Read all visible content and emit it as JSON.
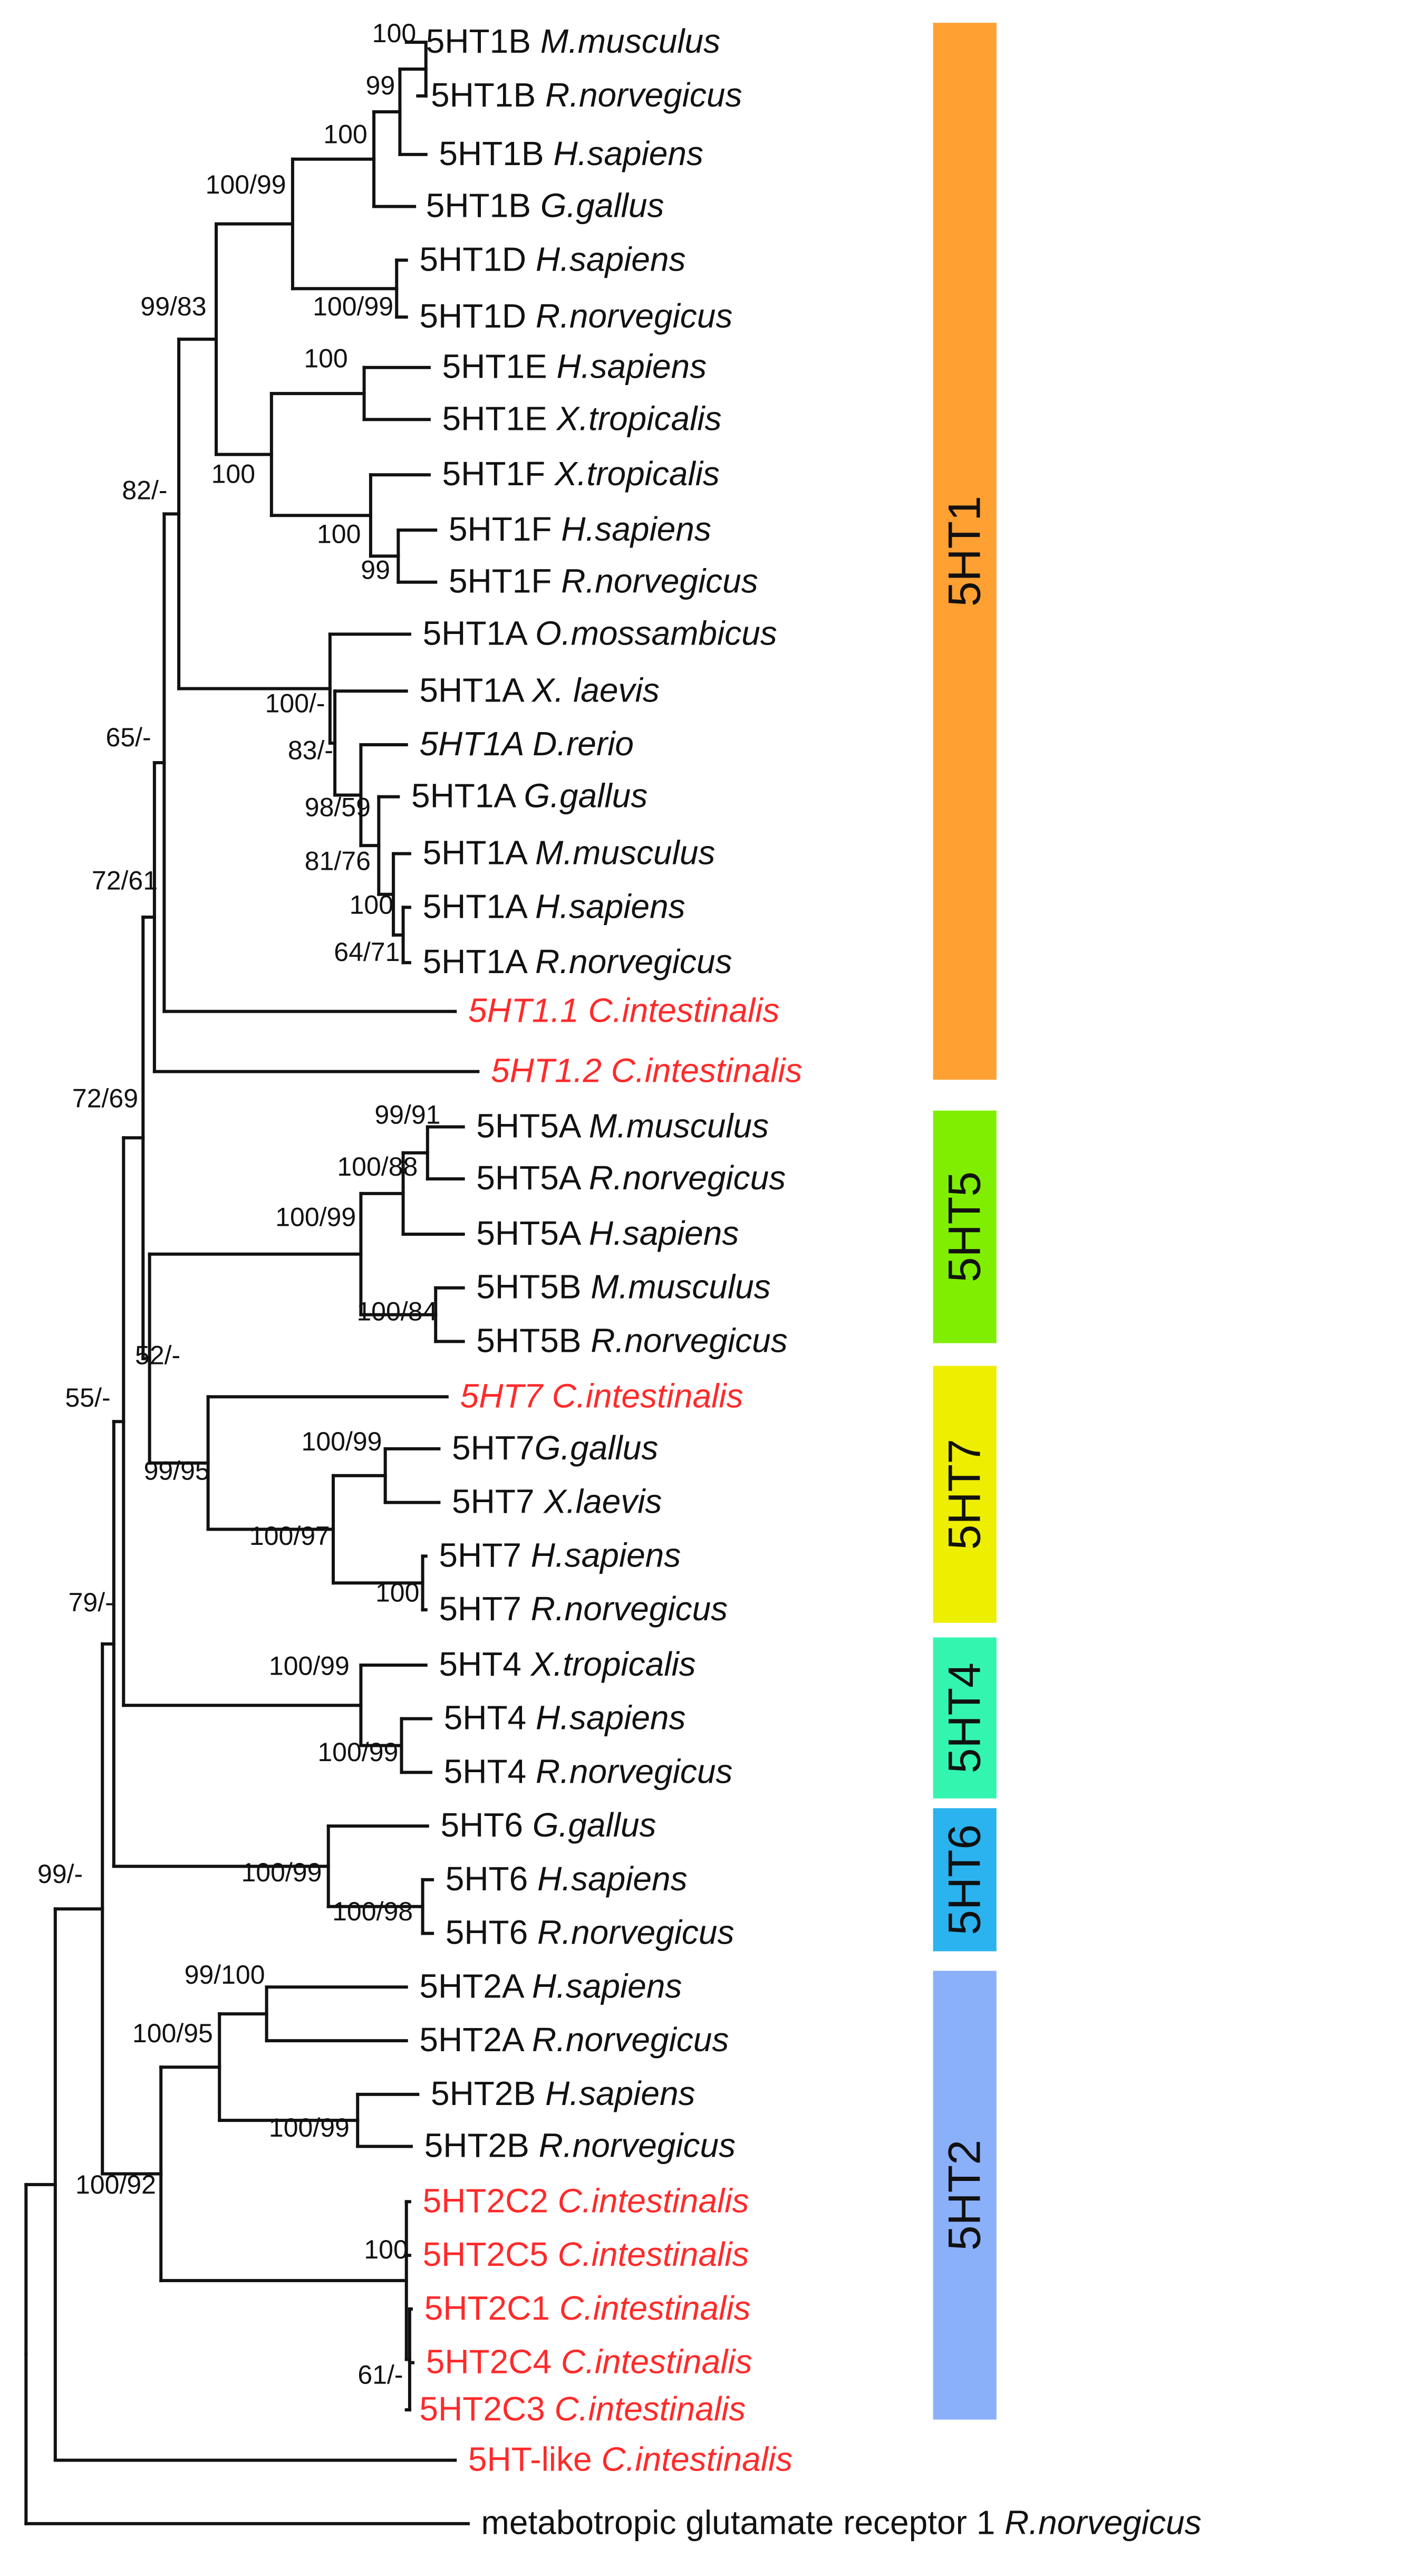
{
  "colors": {
    "ink": "#111111",
    "highlight": "#ff2a2a"
  },
  "taxa": {
    "t_1b_mm": {
      "gene": "5HT1B ",
      "species": "M.musculus"
    },
    "t_1b_rn": {
      "gene": "5HT1B ",
      "species": "R.norvegicus"
    },
    "t_1b_hs": {
      "gene": "5HT1B ",
      "species": "H.sapiens"
    },
    "t_1b_gg": {
      "gene": "5HT1B ",
      "species": "G.gallus"
    },
    "t_1d_hs": {
      "gene": "5HT1D ",
      "species": "H.sapiens"
    },
    "t_1d_rn": {
      "gene": "5HT1D ",
      "species": "R.norvegicus"
    },
    "t_1e_hs": {
      "gene": "5HT1E ",
      "species": "H.sapiens"
    },
    "t_1e_xt": {
      "gene": "5HT1E ",
      "species": "X.tropicalis"
    },
    "t_1f_xt": {
      "gene": "5HT1F ",
      "species": "X.tropicalis"
    },
    "t_1f_hs": {
      "gene": "5HT1F ",
      "species": "H.sapiens"
    },
    "t_1f_rn": {
      "gene": "5HT1F ",
      "species": "R.norvegicus"
    },
    "t_1a_om": {
      "gene": "5HT1A ",
      "species": "O.mossambicus"
    },
    "t_1a_xl": {
      "gene": "5HT1A ",
      "species": "X. laevis"
    },
    "t_1a_dr": {
      "gene": "5HT1A ",
      "species": "D.rerio"
    },
    "t_1a_gg": {
      "gene": "5HT1A ",
      "species": "G.gallus"
    },
    "t_1a_mm": {
      "gene": "5HT1A ",
      "species": "M.musculus"
    },
    "t_1a_hs": {
      "gene": "5HT1A ",
      "species": "H.sapiens"
    },
    "t_1a_rn": {
      "gene": "5HT1A ",
      "species": "R.norvegicus"
    },
    "t_11_ci": {
      "gene": "5HT1.1 ",
      "species": "C.intestinalis"
    },
    "t_12_ci": {
      "gene": "5HT1.2 ",
      "species": "C.intestinalis"
    },
    "t_5a_mm": {
      "gene": "5HT5A ",
      "species": "M.musculus"
    },
    "t_5a_rn": {
      "gene": "5HT5A ",
      "species": "R.norvegicus"
    },
    "t_5a_hs": {
      "gene": "5HT5A ",
      "species": "H.sapiens"
    },
    "t_5b_mm": {
      "gene": "5HT5B ",
      "species": "M.musculus"
    },
    "t_5b_rn": {
      "gene": "5HT5B ",
      "species": "R.norvegicus"
    },
    "t_7_ci": {
      "gene": "5HT7 ",
      "species": "C.intestinalis"
    },
    "t_7_gg": {
      "gene": "5HT7",
      "species": "G.gallus"
    },
    "t_7_xl": {
      "gene": "5HT7 ",
      "species": "X.laevis"
    },
    "t_7_hs": {
      "gene": "5HT7 ",
      "species": "H.sapiens"
    },
    "t_7_rn": {
      "gene": "5HT7 ",
      "species": "R.norvegicus"
    },
    "t_4_xt": {
      "gene": "5HT4 ",
      "species": "X.tropicalis"
    },
    "t_4_hs": {
      "gene": "5HT4 ",
      "species": "H.sapiens"
    },
    "t_4_rn": {
      "gene": "5HT4 ",
      "species": "R.norvegicus"
    },
    "t_6_gg": {
      "gene": "5HT6 ",
      "species": "G.gallus"
    },
    "t_6_hs": {
      "gene": "5HT6 ",
      "species": "H.sapiens"
    },
    "t_6_rn": {
      "gene": "5HT6 ",
      "species": "R.norvegicus"
    },
    "t_2a_hs": {
      "gene": "5HT2A ",
      "species": "H.sapiens"
    },
    "t_2a_rn": {
      "gene": "5HT2A ",
      "species": "R.norvegicus"
    },
    "t_2b_hs": {
      "gene": "5HT2B ",
      "species": "H.sapiens"
    },
    "t_2b_rn": {
      "gene": "5HT2B ",
      "species": "R.norvegicus"
    },
    "t_2c2_ci": {
      "gene": "5HT2C2 ",
      "species": "C.intestinalis"
    },
    "t_2c5_ci": {
      "gene": "5HT2C5 ",
      "species": "C.intestinalis"
    },
    "t_2c1_ci": {
      "gene": "5HT2C1 ",
      "species": "C.intestinalis"
    },
    "t_2c4_ci": {
      "gene": "5HT2C4 ",
      "species": "C.intestinalis"
    },
    "t_2c3_ci": {
      "gene": "5HT2C3 ",
      "species": "C.intestinalis"
    },
    "t_like_ci": {
      "gene": "5HT-like ",
      "species": "C.intestinalis"
    },
    "t_mglur": {
      "gene": "metabotropic glutamate receptor 1 ",
      "species": "R.norvegicus"
    }
  },
  "support": {
    "s_1b_mmrn": "100",
    "s_1b_mmrnhs": "99",
    "s_1b_all": "100",
    "s_1bd": "100/99",
    "s_1d": "100/99",
    "s_1e": "100",
    "s_1f_hsrn": "99",
    "s_1f": "100",
    "s_1ef": "100",
    "s_1bdef": "99/83",
    "s_1a_top": "100/-",
    "s_1a_dr": "83/-",
    "s_1a_gg": "98/59",
    "s_1a_mam": "81/76",
    "s_1a_hsrn_a": "100",
    "s_1a_hsrn_b": "64/71",
    "s_5ht1": "82/-",
    "s_5ht1_12": "65/-",
    "s_a72": "72/61",
    "s_5a_mmrn": "99/91",
    "s_5a": "100/88",
    "s_5ab": "100/99",
    "s_5b": "100/84",
    "s_72_69": "72/69",
    "s_52": "52/-",
    "s_7_ggxl": "100/99",
    "s_7_hsrn": "100",
    "s_7_tetra": "100/97",
    "s_7": "99/95",
    "s_55": "55/-",
    "s_4": "100/99",
    "s_4_hsrn": "100/99",
    "s_79": "79/-",
    "s_6": "100/99",
    "s_6_hsrn": "100/98",
    "s_99": "99/-",
    "s_2a": "99/100",
    "s_2ab": "100/95",
    "s_2b": "100/99",
    "s_2": "100/92",
    "s_2c": "100",
    "s_2c_sub": "61/-"
  },
  "clades": [
    {
      "label": "5HT1",
      "color": "#ffa033"
    },
    {
      "label": "5HT5",
      "color": "#80ee00"
    },
    {
      "label": "5HT7",
      "color": "#eeee00"
    },
    {
      "label": "5HT4",
      "color": "#33f5b0"
    },
    {
      "label": "5HT6",
      "color": "#2ab3ee"
    },
    {
      "label": "5HT2",
      "color": "#8bb0fa"
    }
  ]
}
